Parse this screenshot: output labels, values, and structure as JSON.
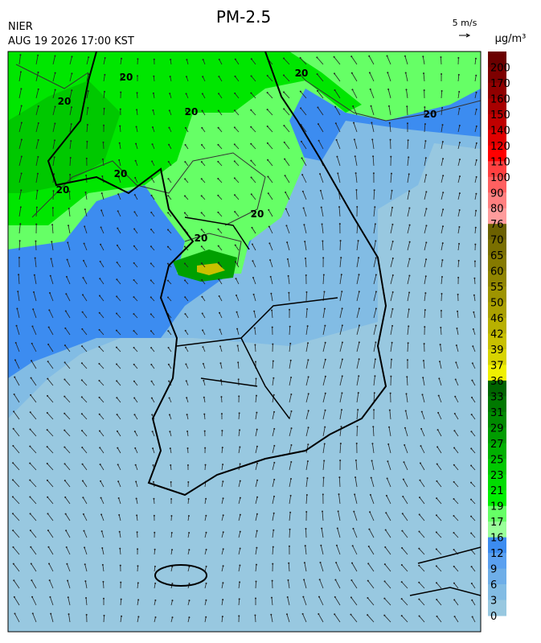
{
  "header": {
    "title": "PM-2.5",
    "agency": "NIER",
    "datetime": "AUG 19 2026 17:00 KST",
    "vector_scale": "5 m/s",
    "unit": "μg/m³"
  },
  "map": {
    "contour_labels": [
      "20",
      "20",
      "20",
      "20",
      "20",
      "20",
      "20",
      "20",
      "20"
    ]
  },
  "colorbar": {
    "labels": [
      200,
      170,
      160,
      150,
      140,
      120,
      110,
      100,
      90,
      80,
      76,
      70,
      65,
      60,
      55,
      50,
      46,
      42,
      39,
      37,
      36,
      33,
      31,
      29,
      27,
      25,
      23,
      21,
      19,
      17,
      16,
      12,
      9,
      6,
      3,
      0
    ],
    "colors": [
      "#6b0000",
      "#7d0000",
      "#900000",
      "#a80000",
      "#c00000",
      "#e00000",
      "#ff0000",
      "#ff4040",
      "#ff6060",
      "#ff8080",
      "#ff9c9c",
      "#6b6000",
      "#7a6f00",
      "#857a00",
      "#908500",
      "#9e9400",
      "#aaa000",
      "#b8b000",
      "#c8c000",
      "#d8d400",
      "#f0f000",
      "#006400",
      "#007800",
      "#008a00",
      "#009c00",
      "#00b000",
      "#00c800",
      "#00dc00",
      "#00f000",
      "#66ff66",
      "#99ff99",
      "#3c8cf0",
      "#5aa0f0",
      "#6eaee8",
      "#82bce4",
      "#98c8e0"
    ]
  }
}
